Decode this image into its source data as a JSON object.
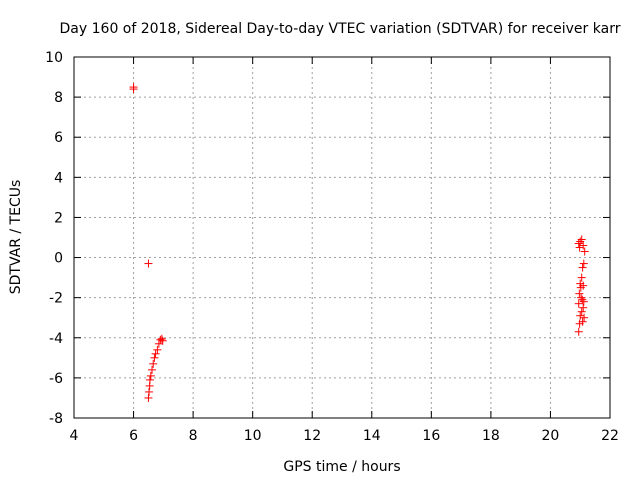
{
  "chart_data": {
    "type": "scatter",
    "title": "Day 160 of 2018, Sidereal Day-to-day VTEC variation (SDTVAR) for receiver karr",
    "xlabel": "GPS time / hours",
    "ylabel": "SDTVAR / TECUs",
    "xlim": [
      4,
      22
    ],
    "ylim": [
      -8,
      10
    ],
    "x_ticks": [
      4,
      6,
      8,
      10,
      12,
      14,
      16,
      18,
      20,
      22
    ],
    "y_ticks": [
      -8,
      -6,
      -4,
      -2,
      0,
      2,
      4,
      6,
      8,
      10
    ],
    "grid": true,
    "legend": "none",
    "marker": "+",
    "colors": {
      "points": "#ff0000",
      "grid": "#a0a0a0",
      "axes": "#000000"
    },
    "series": [
      {
        "points": [
          [
            6.0,
            8.5
          ],
          [
            6.0,
            8.4
          ],
          [
            6.5,
            -0.3
          ],
          [
            6.5,
            -7.0
          ],
          [
            6.52,
            -6.7
          ],
          [
            6.54,
            -6.4
          ],
          [
            6.55,
            -6.1
          ],
          [
            6.58,
            -5.9
          ],
          [
            6.62,
            -5.6
          ],
          [
            6.66,
            -5.3
          ],
          [
            6.7,
            -5.0
          ],
          [
            6.74,
            -4.8
          ],
          [
            6.8,
            -4.6
          ],
          [
            6.85,
            -4.3
          ],
          [
            6.9,
            -4.1
          ],
          [
            6.95,
            -4.05
          ],
          [
            6.98,
            -4.15
          ],
          [
            20.95,
            0.7
          ],
          [
            20.98,
            0.5
          ],
          [
            21.0,
            0.8
          ],
          [
            21.05,
            0.9
          ],
          [
            21.1,
            0.6
          ],
          [
            21.15,
            0.3
          ],
          [
            21.12,
            -0.3
          ],
          [
            21.08,
            -0.5
          ],
          [
            21.05,
            -1.0
          ],
          [
            21.0,
            -1.3
          ],
          [
            21.1,
            -1.4
          ],
          [
            20.97,
            -1.8
          ],
          [
            21.03,
            -2.0
          ],
          [
            21.12,
            -2.2
          ],
          [
            20.95,
            -2.3
          ],
          [
            21.1,
            -2.5
          ],
          [
            21.05,
            -2.7
          ],
          [
            21.0,
            -2.9
          ],
          [
            21.13,
            -3.0
          ],
          [
            20.98,
            -3.3
          ],
          [
            21.08,
            -3.2
          ],
          [
            20.95,
            -3.7
          ],
          [
            21.02,
            -1.5
          ],
          [
            21.07,
            -2.1
          ]
        ]
      }
    ]
  }
}
